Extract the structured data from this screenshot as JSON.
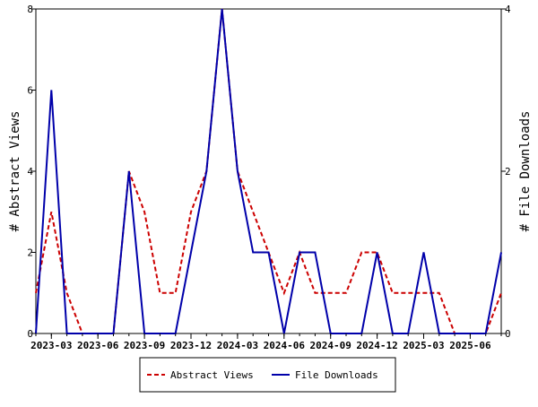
{
  "chart_data": {
    "type": "line",
    "ylabel_left": "# Abstract Views",
    "ylabel_right": "# File Downloads",
    "ylim_left": [
      0,
      8
    ],
    "ylim_right": [
      0,
      4
    ],
    "yticks_left": [
      "0",
      "2",
      "4",
      "6",
      "8"
    ],
    "yticks_right": [
      "0",
      "2",
      "4"
    ],
    "x_tick_labels": [
      "2023-03",
      "2023-06",
      "2023-09",
      "2023-12",
      "2024-03",
      "2024-06",
      "2024-09",
      "2024-12",
      "2025-03",
      "2025-06"
    ],
    "x": [
      "2023-02",
      "2023-03",
      "2023-04",
      "2023-05",
      "2023-06",
      "2023-07",
      "2023-08",
      "2023-09",
      "2023-10",
      "2023-11",
      "2023-12",
      "2024-01",
      "2024-02",
      "2024-03",
      "2024-04",
      "2024-05",
      "2024-06",
      "2024-07",
      "2024-08",
      "2024-09",
      "2024-10",
      "2024-11",
      "2024-12",
      "2025-01",
      "2025-02",
      "2025-03",
      "2025-04",
      "2025-05",
      "2025-06",
      "2025-07",
      "2025-08"
    ],
    "series": [
      {
        "name": "Abstract Views",
        "axis": "left",
        "color": "#cc0000",
        "dash": "dashed",
        "values": [
          1,
          3,
          1,
          0,
          0,
          0,
          4,
          3,
          1,
          1,
          3,
          4,
          8,
          4,
          3,
          2,
          1,
          2,
          1,
          1,
          1,
          2,
          2,
          1,
          1,
          1,
          1,
          0,
          0,
          0,
          1
        ]
      },
      {
        "name": "File Downloads",
        "axis": "right",
        "color": "#0000aa",
        "dash": "solid",
        "values": [
          0,
          3,
          0,
          0,
          0,
          0,
          2,
          0,
          0,
          0,
          1,
          2,
          4,
          2,
          1,
          1,
          0,
          1,
          1,
          0,
          0,
          0,
          1,
          0,
          0,
          1,
          0,
          0,
          0,
          0,
          1
        ]
      }
    ],
    "legend": "bottom-center",
    "grid": false
  }
}
